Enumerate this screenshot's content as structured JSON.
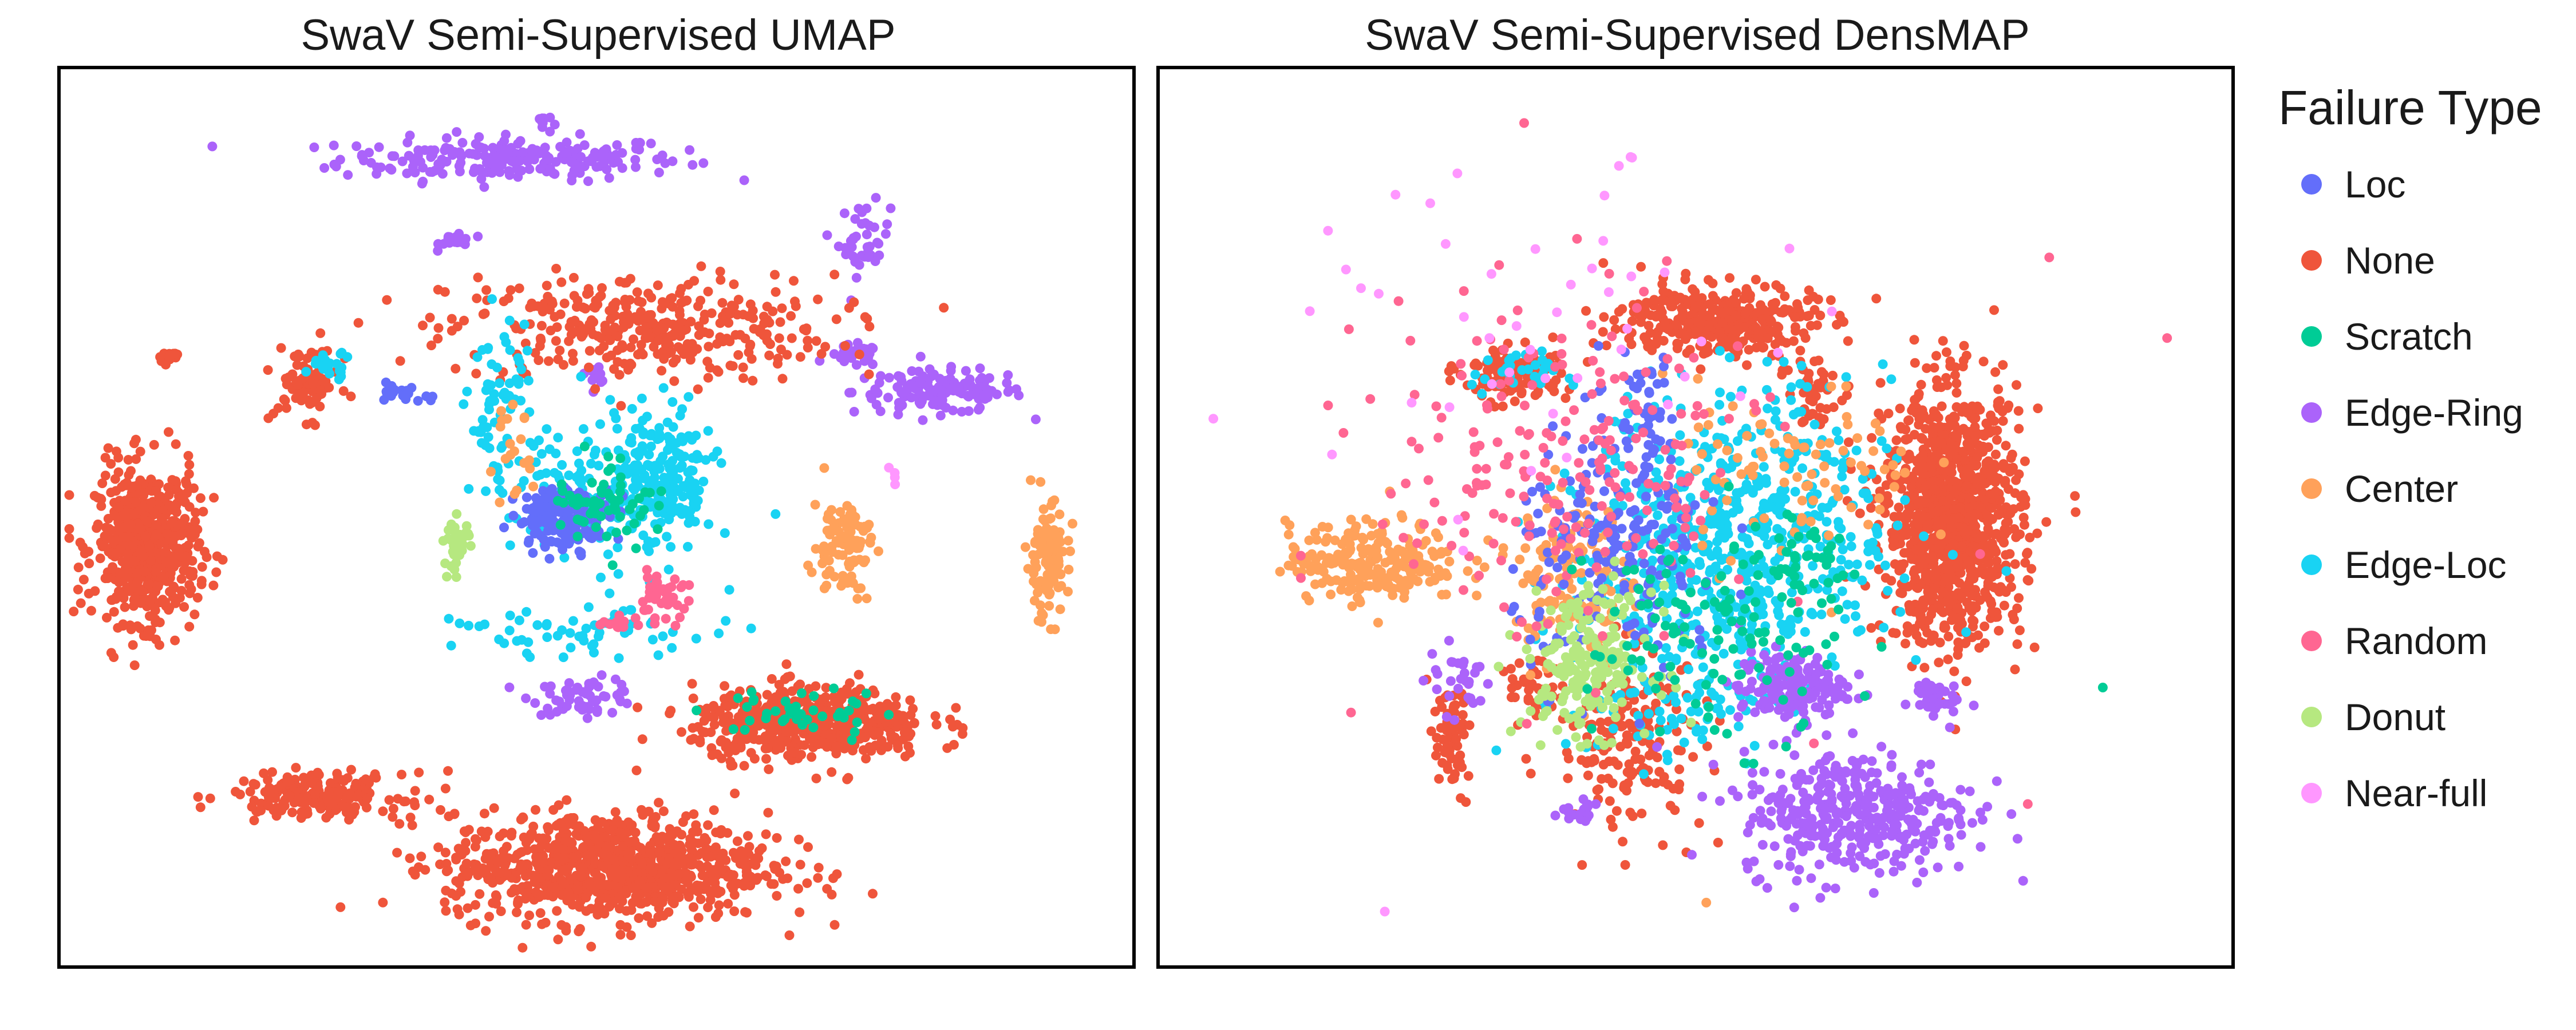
{
  "chart_data": [
    {
      "type": "scatter",
      "title": "SwaV Semi-Supervised UMAP",
      "xlabel": "",
      "ylabel": "",
      "xlim": [
        0,
        100
      ],
      "ylim": [
        0,
        100
      ],
      "grid": false,
      "clusters": [
        {
          "series": "Edge-Ring",
          "cx": 42,
          "cy": 90,
          "sx": 8,
          "sy": 1.2,
          "n": 220
        },
        {
          "series": "Edge-Ring",
          "cx": 45,
          "cy": 94,
          "sx": 0.4,
          "sy": 0.6,
          "n": 10
        },
        {
          "series": "Edge-Ring",
          "cx": 75,
          "cy": 81,
          "sx": 1.2,
          "sy": 2,
          "n": 40
        },
        {
          "series": "Edge-Ring",
          "cx": 82,
          "cy": 64,
          "sx": 4,
          "sy": 1.2,
          "n": 140
        },
        {
          "series": "Edge-Ring",
          "cx": 74,
          "cy": 68,
          "sx": 1.2,
          "sy": 0.6,
          "n": 30
        },
        {
          "series": "Edge-Ring",
          "cx": 37,
          "cy": 81,
          "sx": 0.8,
          "sy": 0.5,
          "n": 20
        },
        {
          "series": "Edge-Ring",
          "cx": 49,
          "cy": 30,
          "sx": 2.5,
          "sy": 1,
          "n": 60
        },
        {
          "series": "Edge-Ring",
          "cx": 50,
          "cy": 66,
          "sx": 0.5,
          "sy": 0.5,
          "n": 10
        },
        {
          "series": "None",
          "cx": 54,
          "cy": 71,
          "sx": 9,
          "sy": 3,
          "n": 360
        },
        {
          "series": "None",
          "cx": 8,
          "cy": 47,
          "sx": 2.4,
          "sy": 4.3,
          "n": 600
        },
        {
          "series": "None",
          "cx": 51,
          "cy": 11,
          "sx": 7.5,
          "sy": 3,
          "n": 900
        },
        {
          "series": "None",
          "cx": 70,
          "cy": 27,
          "sx": 5.5,
          "sy": 2,
          "n": 500
        },
        {
          "series": "None",
          "cx": 24,
          "cy": 19,
          "sx": 4,
          "sy": 1.2,
          "n": 200
        },
        {
          "series": "None",
          "cx": 23,
          "cy": 65,
          "sx": 1.5,
          "sy": 2,
          "n": 80
        },
        {
          "series": "None",
          "cx": 10,
          "cy": 68,
          "sx": 0.8,
          "sy": 0.4,
          "n": 12
        },
        {
          "series": "Edge-Loc",
          "cx": 56,
          "cy": 54,
          "sx": 2.5,
          "sy": 4,
          "n": 220
        },
        {
          "series": "Edge-Loc",
          "cx": 48,
          "cy": 52,
          "sx": 3,
          "sy": 5,
          "n": 90
        },
        {
          "series": "Edge-Loc",
          "cx": 41,
          "cy": 62,
          "sx": 1.5,
          "sy": 5,
          "n": 70
        },
        {
          "series": "Edge-Loc",
          "cx": 49,
          "cy": 37,
          "sx": 6,
          "sy": 1.2,
          "n": 60
        },
        {
          "series": "Edge-Loc",
          "cx": 25,
          "cy": 67,
          "sx": 1.2,
          "sy": 0.7,
          "n": 25
        },
        {
          "series": "Loc",
          "cx": 47,
          "cy": 50,
          "sx": 2.2,
          "sy": 1.7,
          "n": 170
        },
        {
          "series": "Loc",
          "cx": 32,
          "cy": 64,
          "sx": 1.2,
          "sy": 0.6,
          "n": 20
        },
        {
          "series": "Scratch",
          "cx": 51,
          "cy": 52,
          "sx": 2.5,
          "sy": 2.5,
          "n": 60
        },
        {
          "series": "Scratch",
          "cx": 69,
          "cy": 28,
          "sx": 4,
          "sy": 1.5,
          "n": 40
        },
        {
          "series": "Center",
          "cx": 73,
          "cy": 47,
          "sx": 1.4,
          "sy": 2.8,
          "n": 90
        },
        {
          "series": "Center",
          "cx": 92,
          "cy": 45,
          "sx": 1,
          "sy": 3.2,
          "n": 110
        },
        {
          "series": "Center",
          "cx": 42,
          "cy": 57,
          "sx": 1,
          "sy": 3,
          "n": 20
        },
        {
          "series": "Random",
          "cx": 56,
          "cy": 41,
          "sx": 1.3,
          "sy": 1.2,
          "n": 40
        },
        {
          "series": "Random",
          "cx": 52,
          "cy": 38,
          "sx": 1.2,
          "sy": 0.5,
          "n": 12
        },
        {
          "series": "Donut",
          "cx": 37,
          "cy": 47,
          "sx": 0.6,
          "sy": 1.5,
          "n": 40
        },
        {
          "series": "Near-full",
          "cx": 78,
          "cy": 55,
          "sx": 0.4,
          "sy": 0.4,
          "n": 4
        }
      ]
    },
    {
      "type": "scatter",
      "title": "SwaV Semi-Supervised DensMAP",
      "xlabel": "",
      "ylabel": "",
      "xlim": [
        0,
        100
      ],
      "ylim": [
        0,
        100
      ],
      "grid": false,
      "clusters": [
        {
          "series": "None",
          "cx": 74,
          "cy": 50,
          "sx": 3.2,
          "sy": 7,
          "n": 1100
        },
        {
          "series": "None",
          "cx": 52,
          "cy": 72,
          "sx": 4.5,
          "sy": 2,
          "n": 350
        },
        {
          "series": "None",
          "cx": 33,
          "cy": 66,
          "sx": 2.5,
          "sy": 1.5,
          "n": 120
        },
        {
          "series": "None",
          "cx": 44,
          "cy": 25,
          "sx": 3.5,
          "sy": 5,
          "n": 180
        },
        {
          "series": "None",
          "cx": 61,
          "cy": 64,
          "sx": 1.2,
          "sy": 1.8,
          "n": 50
        },
        {
          "series": "None",
          "cx": 27,
          "cy": 25,
          "sx": 1,
          "sy": 3,
          "n": 60
        },
        {
          "series": "None",
          "cx": 35,
          "cy": 31,
          "sx": 1.2,
          "sy": 1.6,
          "n": 40
        },
        {
          "series": "Edge-Loc",
          "cx": 54,
          "cy": 48,
          "sx": 7,
          "sy": 8,
          "n": 600
        },
        {
          "series": "Edge-Loc",
          "cx": 33,
          "cy": 66,
          "sx": 2,
          "sy": 1.2,
          "n": 30
        },
        {
          "series": "Edge-Loc",
          "cx": 48,
          "cy": 30,
          "sx": 5,
          "sy": 4,
          "n": 90
        },
        {
          "series": "Edge-Ring",
          "cx": 65,
          "cy": 17,
          "sx": 5.5,
          "sy": 3.5,
          "n": 380
        },
        {
          "series": "Edge-Ring",
          "cx": 59,
          "cy": 31,
          "sx": 2.5,
          "sy": 2,
          "n": 170
        },
        {
          "series": "Edge-Ring",
          "cx": 72,
          "cy": 30,
          "sx": 1.2,
          "sy": 1,
          "n": 40
        },
        {
          "series": "Edge-Ring",
          "cx": 28,
          "cy": 32,
          "sx": 1.5,
          "sy": 2,
          "n": 30
        },
        {
          "series": "Edge-Ring",
          "cx": 39,
          "cy": 17,
          "sx": 1.2,
          "sy": 0.8,
          "n": 20
        },
        {
          "series": "Center",
          "cx": 20,
          "cy": 45,
          "sx": 4,
          "sy": 2.2,
          "n": 240
        },
        {
          "series": "Center",
          "cx": 38,
          "cy": 43,
          "sx": 2.5,
          "sy": 5,
          "n": 140
        },
        {
          "series": "Center",
          "cx": 59,
          "cy": 55,
          "sx": 6,
          "sy": 5,
          "n": 90
        },
        {
          "series": "Loc",
          "cx": 43,
          "cy": 46,
          "sx": 5,
          "sy": 7,
          "n": 200
        },
        {
          "series": "Loc",
          "cx": 45,
          "cy": 62,
          "sx": 1.5,
          "sy": 3,
          "n": 40
        },
        {
          "series": "Donut",
          "cx": 40,
          "cy": 34,
          "sx": 3,
          "sy": 4,
          "n": 200
        },
        {
          "series": "Random",
          "cx": 38,
          "cy": 55,
          "sx": 9,
          "sy": 10,
          "n": 220
        },
        {
          "series": "Scratch",
          "cx": 52,
          "cy": 37,
          "sx": 6,
          "sy": 6,
          "n": 120
        },
        {
          "series": "Scratch",
          "cx": 60,
          "cy": 45,
          "sx": 2,
          "sy": 2,
          "n": 30
        },
        {
          "series": "Near-full",
          "cx": 37,
          "cy": 68,
          "sx": 10,
          "sy": 10,
          "n": 45
        }
      ],
      "points": [
        {
          "series": "Near-full",
          "x": 5,
          "y": 61
        },
        {
          "series": "Near-full",
          "x": 22,
          "y": 86
        },
        {
          "series": "Near-full",
          "x": 14,
          "y": 73
        },
        {
          "series": "Near-full",
          "x": 21,
          "y": 6
        },
        {
          "series": "Random",
          "x": 34,
          "y": 94
        },
        {
          "series": "Random",
          "x": 94,
          "y": 70
        },
        {
          "series": "Random",
          "x": 83,
          "y": 79
        },
        {
          "series": "Random",
          "x": 81,
          "y": 18
        },
        {
          "series": "Scratch",
          "x": 88,
          "y": 31
        },
        {
          "series": "Center",
          "x": 51,
          "y": 7
        },
        {
          "series": "Edge-Loc",
          "x": 79,
          "y": 44
        }
      ]
    }
  ],
  "colors": {
    "Loc": "#636efa",
    "None": "#ef553b",
    "Scratch": "#00cc96",
    "Edge-Ring": "#ab63fa",
    "Center": "#ffa15a",
    "Edge-Loc": "#19d3f3",
    "Random": "#ff6692",
    "Donut": "#b6e880",
    "Near-full": "#ff97ff"
  },
  "legend": {
    "title": "Failure Type",
    "items": [
      "Loc",
      "None",
      "Scratch",
      "Edge-Ring",
      "Center",
      "Edge-Loc",
      "Random",
      "Donut",
      "Near-full"
    ]
  }
}
